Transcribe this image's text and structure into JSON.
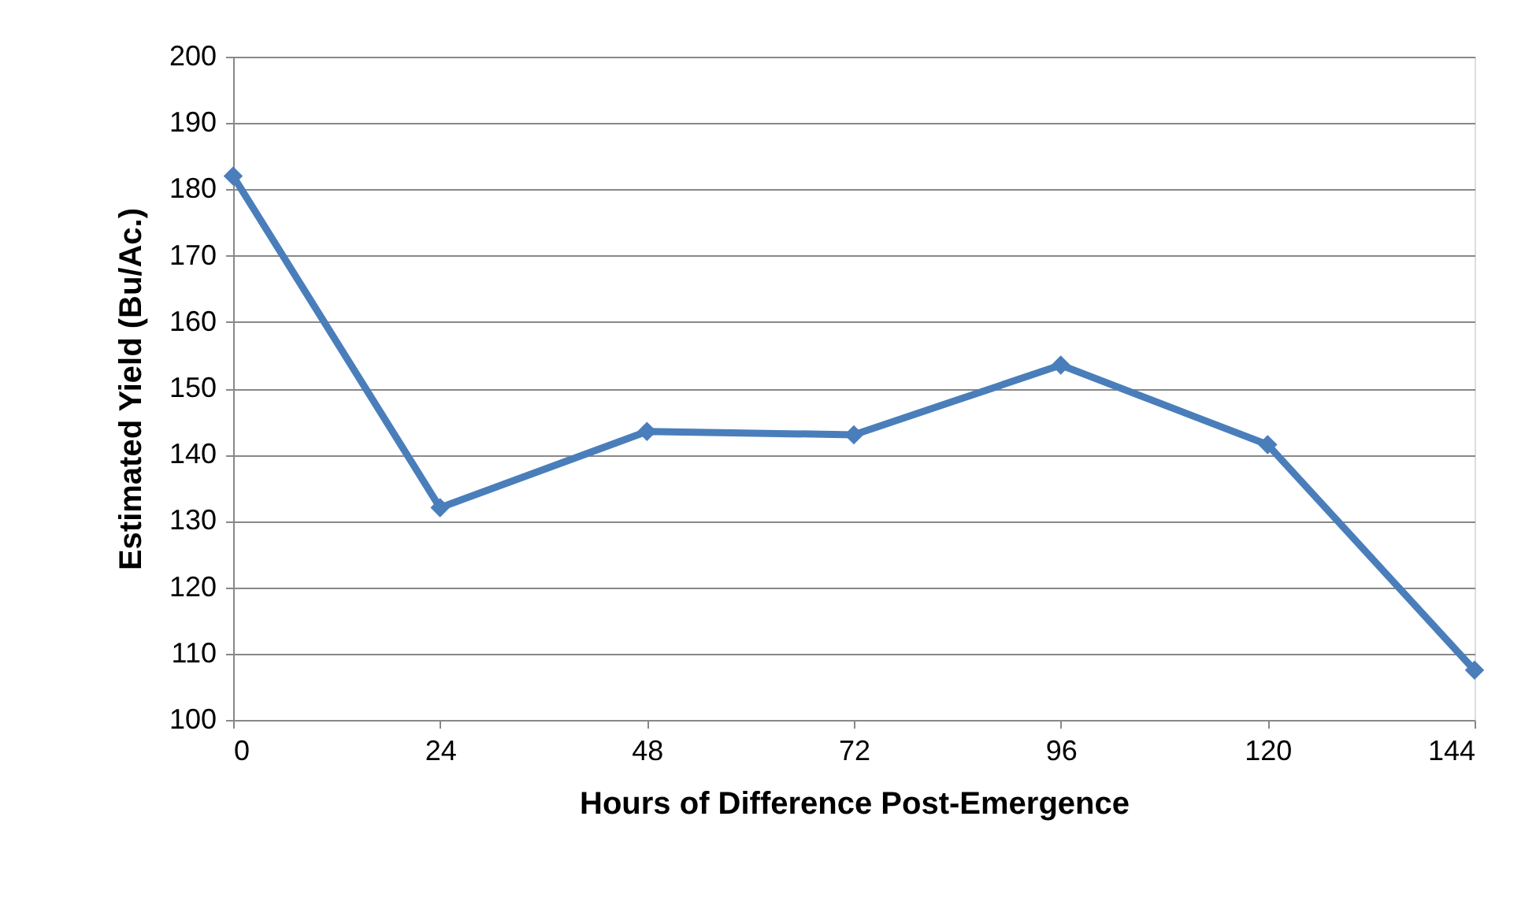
{
  "chart_data": {
    "type": "line",
    "xlabel": "Hours of Difference Post-Emergence",
    "ylabel": "Estimated Yield (Bu/Ac.)",
    "x": [
      0,
      24,
      48,
      72,
      96,
      120,
      144
    ],
    "series": [
      {
        "color": "#4a7ebb",
        "values": [
          182,
          132,
          143.5,
          143,
          153.5,
          141.5,
          107.5
        ]
      }
    ],
    "xlim": [
      0,
      144
    ],
    "xticks": [
      0,
      24,
      48,
      72,
      96,
      120,
      144
    ],
    "ylim": [
      100,
      200
    ],
    "yticks": [
      100,
      110,
      120,
      130,
      140,
      150,
      160,
      170,
      180,
      190,
      200
    ],
    "grid": "y",
    "marker": "diamond",
    "line_style": "solid"
  }
}
